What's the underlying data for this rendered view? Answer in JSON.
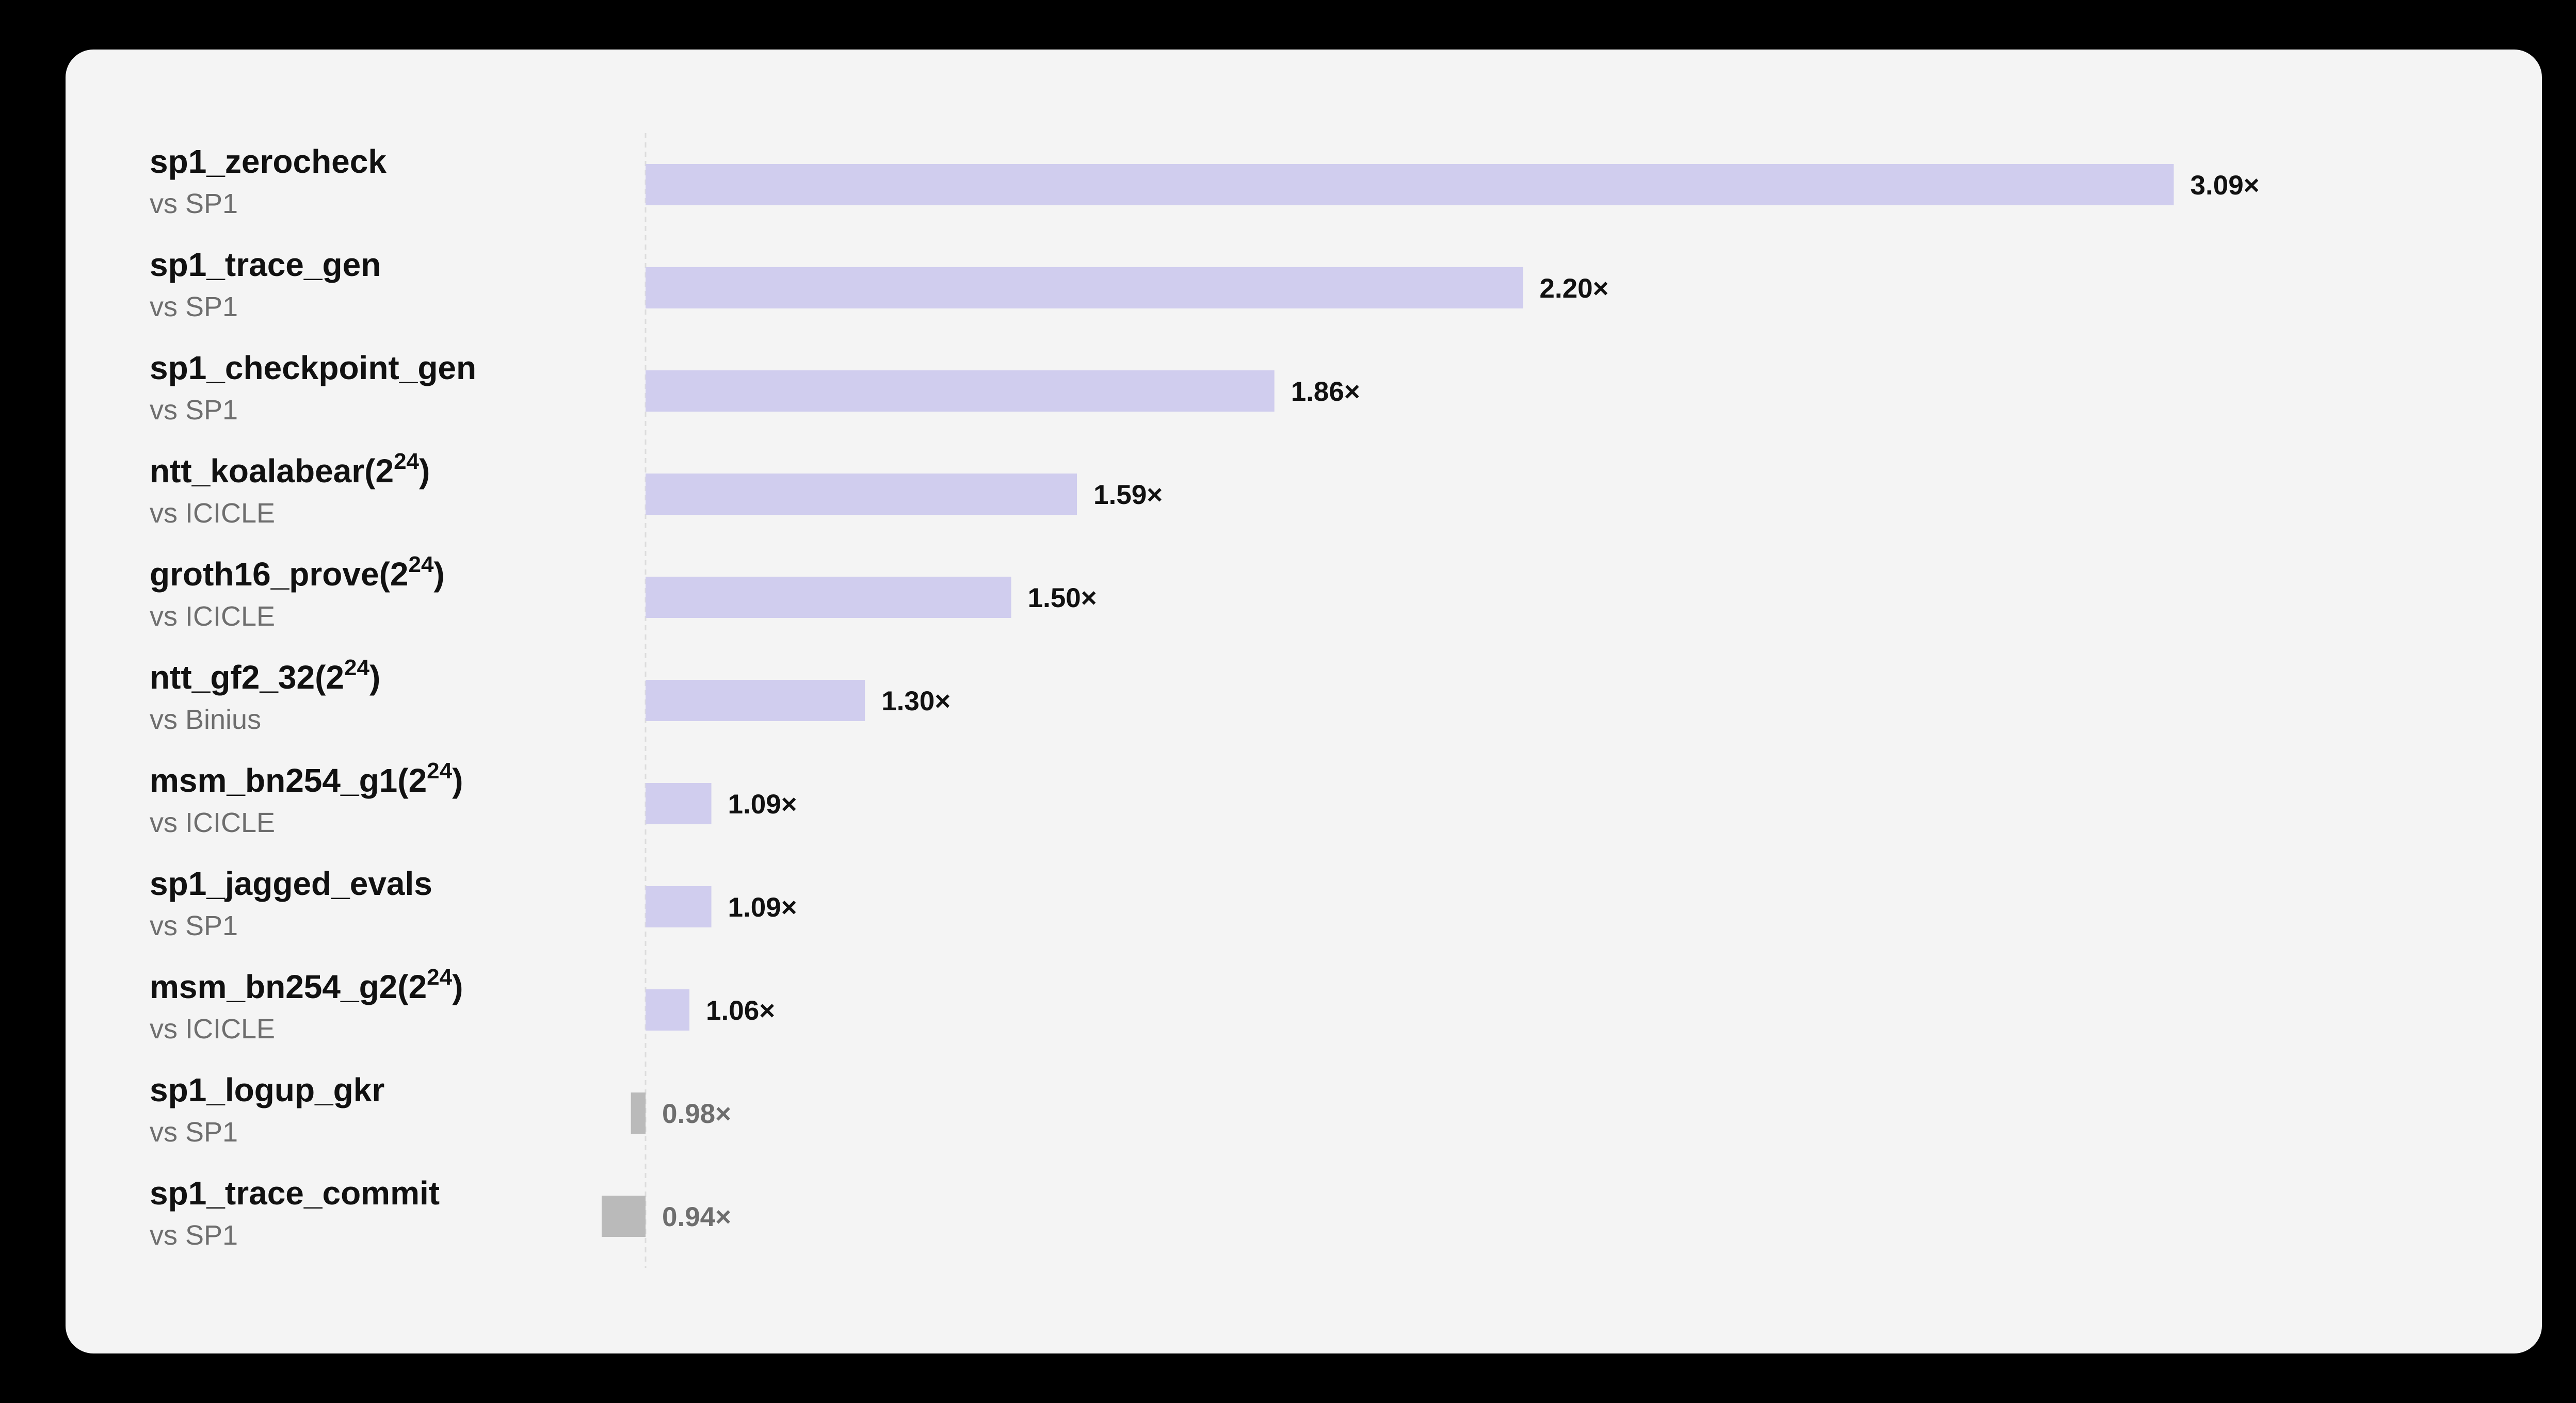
{
  "chart_data": {
    "type": "bar",
    "orientation": "horizontal",
    "baseline": 1.0,
    "colors": {
      "above_baseline": "#d0cdee",
      "below_baseline": "#bababa",
      "label_above": "#111111",
      "label_below": "#6e6e6e",
      "baseline_line": "#dcdcdc"
    },
    "categories": [
      {
        "name": "sp1_zerocheck",
        "sup": "",
        "comparison": "vs SP1",
        "value": 3.09,
        "label": "3.09×"
      },
      {
        "name": "sp1_trace_gen",
        "sup": "",
        "comparison": "vs SP1",
        "value": 2.2,
        "label": "2.20×"
      },
      {
        "name": "sp1_checkpoint_gen",
        "sup": "",
        "comparison": "vs SP1",
        "value": 1.86,
        "label": "1.86×"
      },
      {
        "name": "ntt_koalabear(2",
        "sup": "24",
        "comparison": "vs ICICLE",
        "value": 1.59,
        "label": "1.59×"
      },
      {
        "name": "groth16_prove(2",
        "sup": "24",
        "comparison": "vs ICICLE",
        "value": 1.5,
        "label": "1.50×"
      },
      {
        "name": "ntt_gf2_32(2",
        "sup": "24",
        "comparison": "vs Binius",
        "value": 1.3,
        "label": "1.30×"
      },
      {
        "name": "msm_bn254_g1(2",
        "sup": "24",
        "comparison": "vs ICICLE",
        "value": 1.09,
        "label": "1.09×"
      },
      {
        "name": "sp1_jagged_evals",
        "sup": "",
        "comparison": "vs SP1",
        "value": 1.09,
        "label": "1.09×"
      },
      {
        "name": "msm_bn254_g2(2",
        "sup": "24",
        "comparison": "vs ICICLE",
        "value": 1.06,
        "label": "1.06×"
      },
      {
        "name": "sp1_logup_gkr",
        "sup": "",
        "comparison": "vs SP1",
        "value": 0.98,
        "label": "0.98×"
      },
      {
        "name": "sp1_trace_commit",
        "sup": "",
        "comparison": "vs SP1",
        "value": 0.94,
        "label": "0.94×"
      }
    ]
  }
}
